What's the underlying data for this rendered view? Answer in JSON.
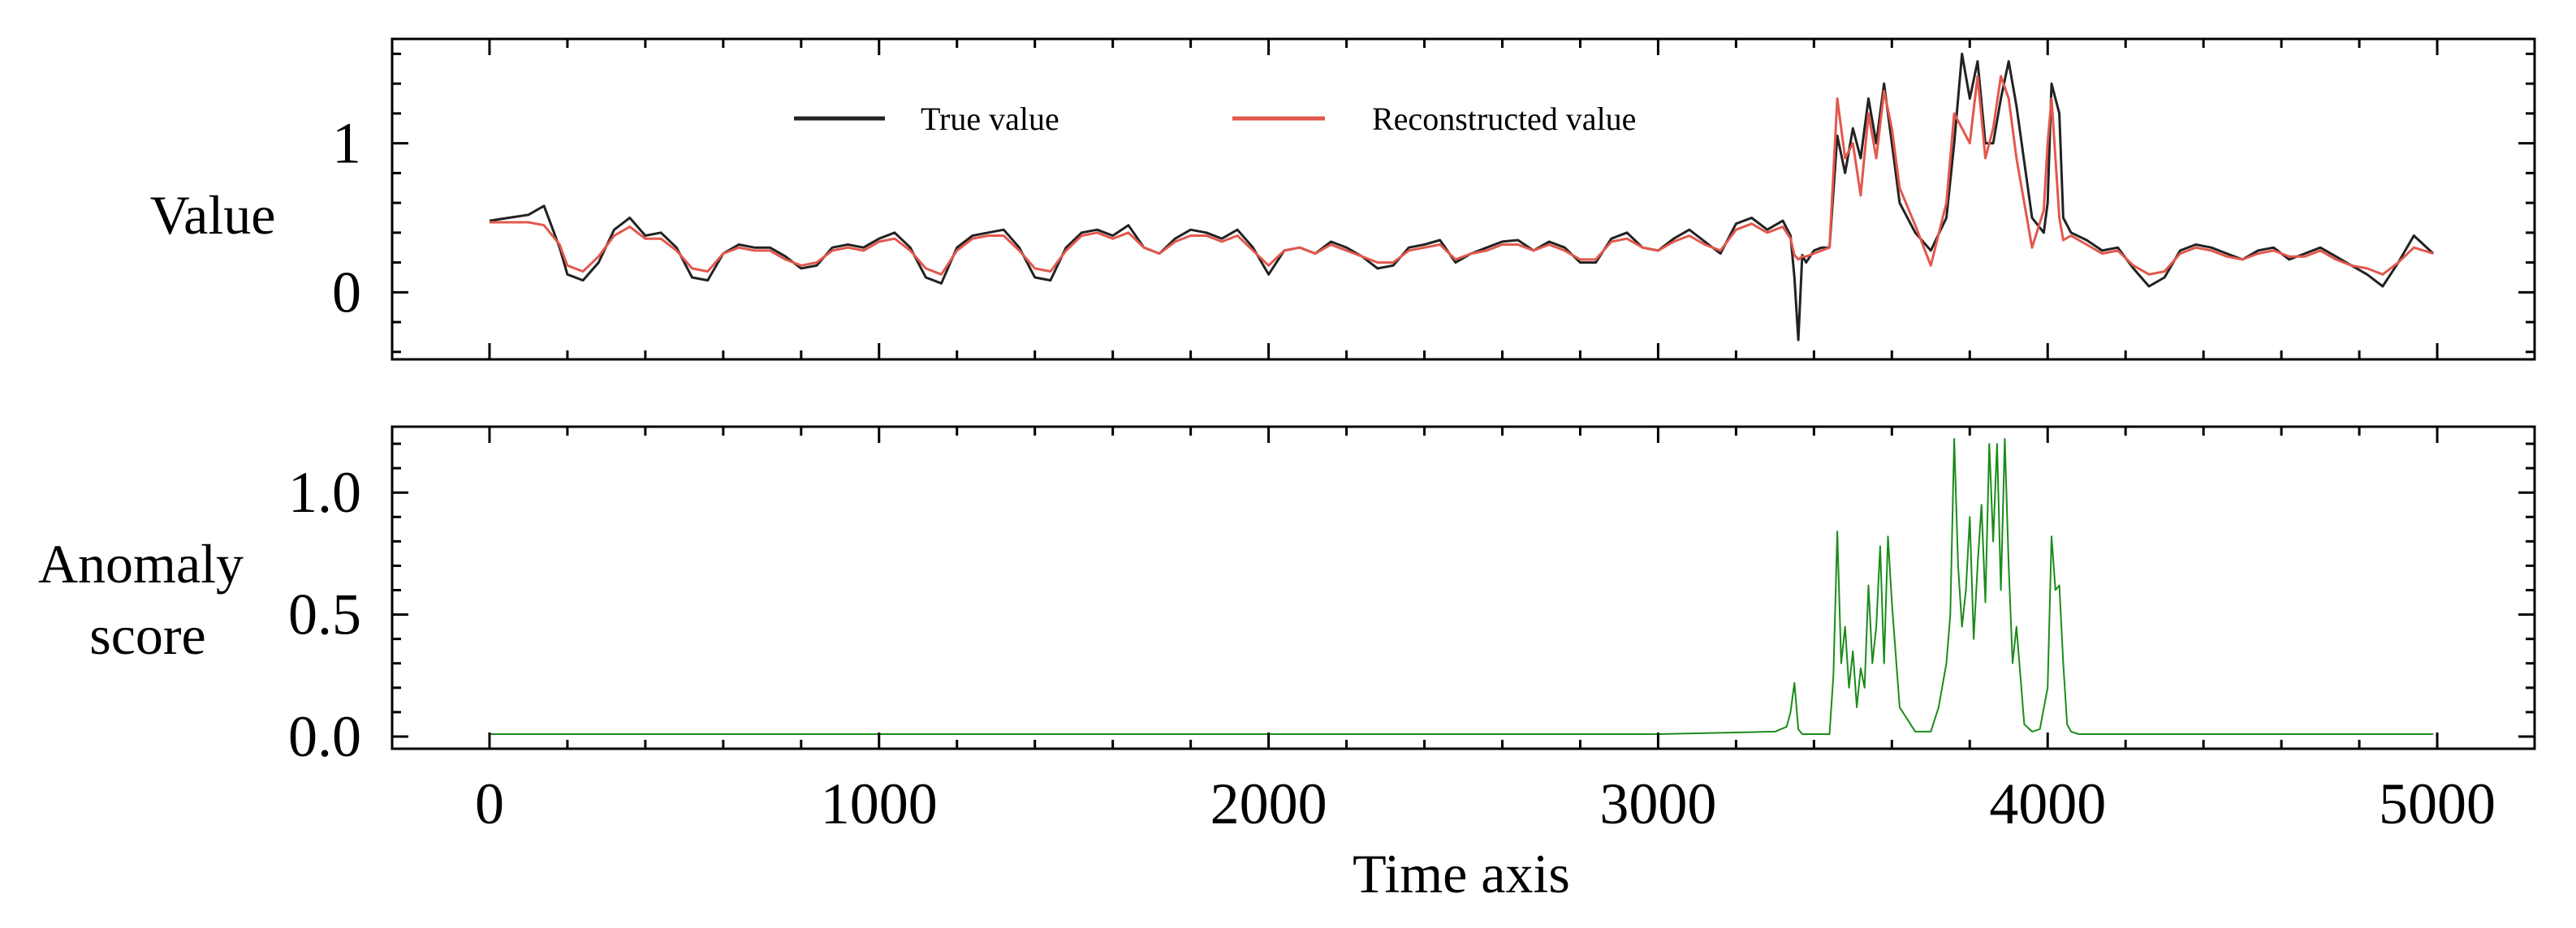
{
  "chart_data": [
    {
      "type": "line",
      "panel": "top",
      "ylabel": "Value",
      "xlabel": "",
      "xlim": [
        -250,
        5250
      ],
      "ylim": [
        -0.45,
        1.7
      ],
      "xticks": [
        0,
        1000,
        2000,
        3000,
        4000,
        5000
      ],
      "yticks": [
        0,
        1
      ],
      "ytick_labels": [
        "0",
        "1"
      ],
      "legend_position": "top-center",
      "series": [
        {
          "name": "True value",
          "color": "#222222",
          "x": [
            0,
            100,
            140,
            180,
            200,
            240,
            280,
            320,
            360,
            400,
            440,
            480,
            520,
            560,
            600,
            640,
            680,
            720,
            760,
            800,
            840,
            880,
            920,
            960,
            1000,
            1040,
            1080,
            1120,
            1160,
            1200,
            1240,
            1280,
            1320,
            1360,
            1400,
            1440,
            1480,
            1520,
            1560,
            1600,
            1640,
            1680,
            1720,
            1760,
            1800,
            1840,
            1880,
            1920,
            1960,
            2000,
            2040,
            2080,
            2120,
            2160,
            2200,
            2240,
            2280,
            2320,
            2360,
            2400,
            2440,
            2480,
            2520,
            2560,
            2600,
            2640,
            2680,
            2720,
            2760,
            2800,
            2840,
            2880,
            2920,
            2960,
            3000,
            3040,
            3080,
            3120,
            3160,
            3200,
            3240,
            3280,
            3320,
            3340,
            3350,
            3360,
            3370,
            3380,
            3400,
            3420,
            3440,
            3460,
            3480,
            3500,
            3520,
            3540,
            3560,
            3580,
            3600,
            3620,
            3660,
            3700,
            3740,
            3760,
            3780,
            3800,
            3820,
            3840,
            3860,
            3880,
            3900,
            3920,
            3960,
            3990,
            4000,
            4010,
            4030,
            4040,
            4060,
            4100,
            4140,
            4180,
            4220,
            4260,
            4300,
            4340,
            4380,
            4420,
            4460,
            4500,
            4540,
            4580,
            4620,
            4660,
            4700,
            4740,
            4780,
            4820,
            4860,
            4900,
            4940,
            4990
          ],
          "values": [
            0.48,
            0.52,
            0.58,
            0.3,
            0.12,
            0.08,
            0.2,
            0.42,
            0.5,
            0.38,
            0.4,
            0.3,
            0.1,
            0.08,
            0.26,
            0.32,
            0.3,
            0.3,
            0.24,
            0.16,
            0.18,
            0.3,
            0.32,
            0.3,
            0.36,
            0.4,
            0.3,
            0.1,
            0.06,
            0.3,
            0.38,
            0.4,
            0.42,
            0.3,
            0.1,
            0.08,
            0.3,
            0.4,
            0.42,
            0.38,
            0.45,
            0.3,
            0.26,
            0.36,
            0.42,
            0.4,
            0.36,
            0.42,
            0.3,
            0.12,
            0.28,
            0.3,
            0.26,
            0.34,
            0.3,
            0.24,
            0.16,
            0.18,
            0.3,
            0.32,
            0.35,
            0.2,
            0.26,
            0.3,
            0.34,
            0.35,
            0.28,
            0.34,
            0.3,
            0.2,
            0.2,
            0.36,
            0.4,
            0.3,
            0.28,
            0.36,
            0.42,
            0.34,
            0.26,
            0.46,
            0.5,
            0.42,
            0.48,
            0.38,
            0.1,
            -0.32,
            0.25,
            0.2,
            0.28,
            0.3,
            0.3,
            1.05,
            0.8,
            1.1,
            0.9,
            1.3,
            1.0,
            1.4,
            1.0,
            0.6,
            0.4,
            0.28,
            0.5,
            1.0,
            1.6,
            1.3,
            1.55,
            1.0,
            1.0,
            1.3,
            1.55,
            1.25,
            0.5,
            0.4,
            0.6,
            1.4,
            1.2,
            0.5,
            0.4,
            0.35,
            0.28,
            0.3,
            0.16,
            0.04,
            0.1,
            0.28,
            0.32,
            0.3,
            0.26,
            0.22,
            0.28,
            0.3,
            0.22,
            0.26,
            0.3,
            0.24,
            0.18,
            0.12,
            0.04,
            0.2,
            0.38,
            0.26
          ]
        },
        {
          "name": "Reconstructed value",
          "color": "#e2584c",
          "x": [
            0,
            100,
            140,
            180,
            200,
            240,
            280,
            320,
            360,
            400,
            440,
            480,
            520,
            560,
            600,
            640,
            680,
            720,
            760,
            800,
            840,
            880,
            920,
            960,
            1000,
            1040,
            1080,
            1120,
            1160,
            1200,
            1240,
            1280,
            1320,
            1360,
            1400,
            1440,
            1480,
            1520,
            1560,
            1600,
            1640,
            1680,
            1720,
            1760,
            1800,
            1840,
            1880,
            1920,
            1960,
            2000,
            2040,
            2080,
            2120,
            2160,
            2200,
            2240,
            2280,
            2320,
            2360,
            2400,
            2440,
            2480,
            2520,
            2560,
            2600,
            2640,
            2680,
            2720,
            2760,
            2800,
            2840,
            2880,
            2920,
            2960,
            3000,
            3040,
            3080,
            3120,
            3160,
            3200,
            3240,
            3280,
            3320,
            3340,
            3350,
            3360,
            3370,
            3380,
            3400,
            3420,
            3440,
            3460,
            3480,
            3500,
            3520,
            3540,
            3560,
            3580,
            3600,
            3620,
            3660,
            3700,
            3740,
            3760,
            3780,
            3800,
            3820,
            3840,
            3860,
            3880,
            3900,
            3920,
            3960,
            3990,
            4000,
            4010,
            4030,
            4040,
            4060,
            4100,
            4140,
            4180,
            4220,
            4260,
            4300,
            4340,
            4380,
            4420,
            4460,
            4500,
            4540,
            4580,
            4620,
            4660,
            4700,
            4740,
            4780,
            4820,
            4860,
            4900,
            4940,
            4990
          ],
          "values": [
            0.47,
            0.47,
            0.45,
            0.32,
            0.18,
            0.14,
            0.24,
            0.38,
            0.44,
            0.36,
            0.36,
            0.28,
            0.16,
            0.14,
            0.26,
            0.3,
            0.28,
            0.28,
            0.22,
            0.18,
            0.2,
            0.28,
            0.3,
            0.28,
            0.34,
            0.36,
            0.28,
            0.16,
            0.12,
            0.28,
            0.36,
            0.38,
            0.38,
            0.28,
            0.16,
            0.14,
            0.28,
            0.38,
            0.4,
            0.36,
            0.4,
            0.3,
            0.26,
            0.34,
            0.38,
            0.38,
            0.34,
            0.38,
            0.28,
            0.18,
            0.28,
            0.3,
            0.26,
            0.32,
            0.28,
            0.24,
            0.2,
            0.2,
            0.28,
            0.3,
            0.32,
            0.22,
            0.26,
            0.28,
            0.32,
            0.32,
            0.28,
            0.32,
            0.28,
            0.22,
            0.22,
            0.34,
            0.36,
            0.3,
            0.28,
            0.34,
            0.38,
            0.32,
            0.28,
            0.42,
            0.46,
            0.4,
            0.44,
            0.36,
            0.25,
            0.22,
            0.24,
            0.24,
            0.26,
            0.28,
            0.3,
            1.3,
            0.9,
            1.0,
            0.65,
            1.2,
            0.9,
            1.35,
            1.1,
            0.7,
            0.45,
            0.18,
            0.6,
            1.2,
            1.1,
            1.0,
            1.45,
            0.9,
            1.1,
            1.45,
            1.3,
            0.9,
            0.3,
            0.55,
            1.0,
            1.3,
            0.5,
            0.35,
            0.38,
            0.32,
            0.26,
            0.28,
            0.18,
            0.12,
            0.14,
            0.26,
            0.3,
            0.28,
            0.24,
            0.22,
            0.26,
            0.28,
            0.24,
            0.24,
            0.28,
            0.22,
            0.18,
            0.16,
            0.12,
            0.2,
            0.3,
            0.26
          ]
        }
      ]
    },
    {
      "type": "line",
      "panel": "bottom",
      "ylabel": "Anomaly score",
      "ylabel_lines": [
        "Anomaly",
        "score"
      ],
      "xlabel": "Time axis",
      "xlim": [
        -250,
        5250
      ],
      "ylim": [
        -0.05,
        1.27
      ],
      "xticks": [
        0,
        1000,
        2000,
        3000,
        4000,
        5000
      ],
      "xtick_labels": [
        "0",
        "1000",
        "2000",
        "3000",
        "4000",
        "5000"
      ],
      "yticks": [
        0.0,
        0.5,
        1.0
      ],
      "ytick_labels": [
        "0.0",
        "0.5",
        "1.0"
      ],
      "series": [
        {
          "name": "Anomaly score",
          "color": "#1a8c1a",
          "x": [
            0,
            500,
            1000,
            1500,
            2000,
            2500,
            3000,
            3300,
            3330,
            3340,
            3350,
            3360,
            3370,
            3380,
            3400,
            3420,
            3440,
            3450,
            3460,
            3470,
            3480,
            3490,
            3500,
            3510,
            3520,
            3530,
            3540,
            3550,
            3560,
            3570,
            3580,
            3590,
            3600,
            3620,
            3660,
            3700,
            3720,
            3740,
            3750,
            3760,
            3770,
            3780,
            3790,
            3800,
            3810,
            3820,
            3830,
            3840,
            3850,
            3860,
            3870,
            3880,
            3890,
            3900,
            3910,
            3920,
            3940,
            3960,
            3980,
            4000,
            4010,
            4020,
            4030,
            4040,
            4050,
            4060,
            4080,
            4200,
            4500,
            4800,
            4990
          ],
          "values": [
            0.01,
            0.01,
            0.01,
            0.01,
            0.01,
            0.01,
            0.01,
            0.02,
            0.04,
            0.1,
            0.22,
            0.03,
            0.01,
            0.01,
            0.01,
            0.01,
            0.01,
            0.25,
            0.84,
            0.3,
            0.45,
            0.2,
            0.35,
            0.12,
            0.28,
            0.2,
            0.62,
            0.3,
            0.45,
            0.78,
            0.3,
            0.82,
            0.55,
            0.12,
            0.02,
            0.02,
            0.12,
            0.3,
            0.5,
            1.22,
            0.7,
            0.45,
            0.6,
            0.9,
            0.4,
            0.7,
            0.95,
            0.55,
            1.2,
            0.8,
            1.2,
            0.6,
            1.22,
            0.7,
            0.3,
            0.45,
            0.05,
            0.02,
            0.03,
            0.2,
            0.82,
            0.6,
            0.62,
            0.3,
            0.05,
            0.02,
            0.01,
            0.01,
            0.01,
            0.01,
            0.01
          ]
        }
      ]
    }
  ]
}
